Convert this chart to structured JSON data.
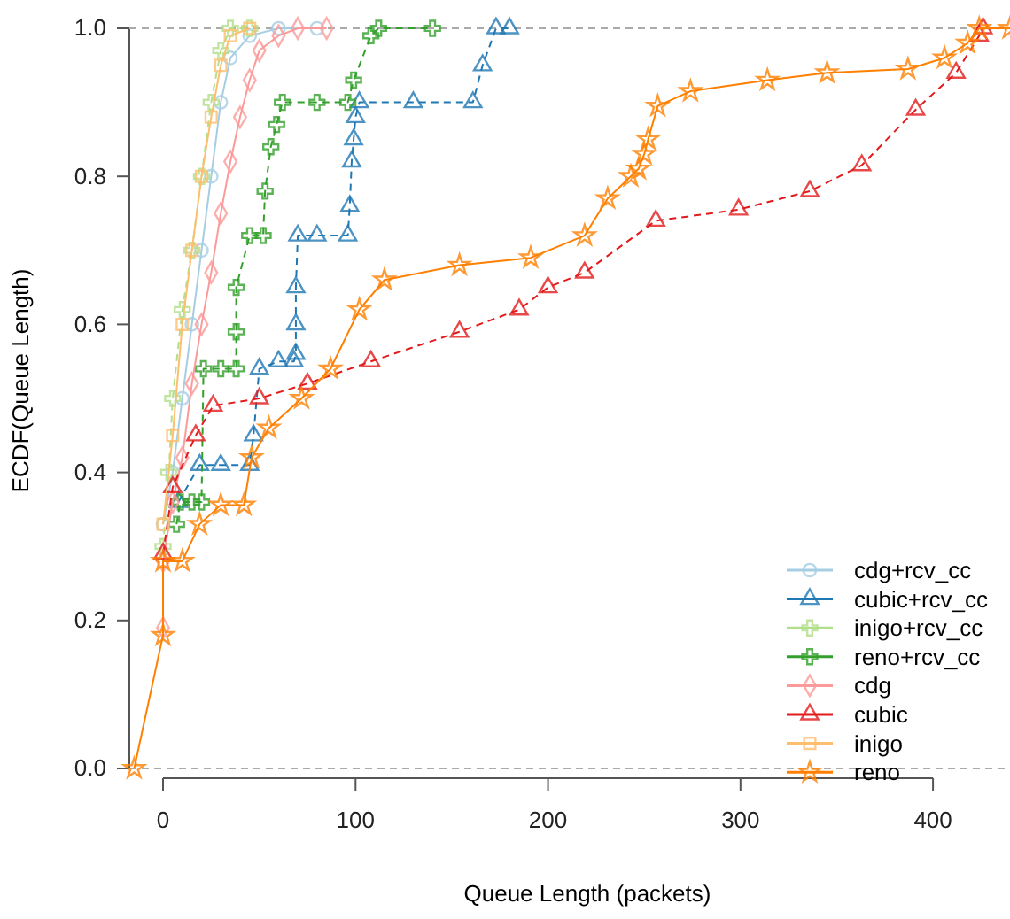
{
  "chart_data": {
    "type": "line",
    "xlabel": "Queue Length (packets)",
    "ylabel": "ECDF(Queue Length)",
    "xlim": [
      -17.5,
      440
    ],
    "ylim": [
      0,
      1
    ],
    "xticks": [
      0,
      100,
      200,
      300,
      400
    ],
    "yticks": [
      {
        "value": 0,
        "label": "0.0"
      },
      {
        "value": 0.2,
        "label": "0.2"
      },
      {
        "value": 0.4,
        "label": "0.4"
      },
      {
        "value": 0.6,
        "label": "0.6"
      },
      {
        "value": 0.8,
        "label": "0.8"
      },
      {
        "value": 1,
        "label": "1.0"
      }
    ],
    "grid": false,
    "legend": "bottom right",
    "ref_lines": [
      {
        "axis": "y",
        "value": 0,
        "color": "#aaaaaa",
        "line_style": "dashed"
      },
      {
        "axis": "y",
        "value": 1,
        "color": "#aaaaaa",
        "line_style": "dashed"
      }
    ],
    "series": [
      {
        "name": "cdg+rcv_cc",
        "color": "#a6cee3",
        "marker": "circle",
        "line_style": "solid",
        "x": [
          0,
          5,
          10,
          15,
          20,
          25,
          30,
          35,
          45,
          60,
          80
        ],
        "values": [
          0.33,
          0.4,
          0.5,
          0.6,
          0.7,
          0.8,
          0.9,
          0.96,
          0.99,
          1,
          1
        ]
      },
      {
        "name": "cubic+rcv_cc",
        "color": "#1f78b4",
        "marker": "triangle",
        "line_style": "dashed",
        "x": [
          8,
          19,
          30,
          45,
          47,
          50,
          60,
          68,
          69,
          69,
          69,
          70,
          80,
          96,
          97,
          98,
          99,
          100,
          102,
          130,
          161,
          166,
          173,
          180
        ],
        "values": [
          0.36,
          0.41,
          0.41,
          0.41,
          0.45,
          0.54,
          0.55,
          0.55,
          0.56,
          0.6,
          0.65,
          0.72,
          0.72,
          0.72,
          0.76,
          0.82,
          0.85,
          0.88,
          0.9,
          0.9,
          0.9,
          0.95,
          1,
          1
        ]
      },
      {
        "name": "inigo+rcv_cc",
        "color": "#b2df8a",
        "marker": "cross",
        "line_style": "dashed",
        "x": [
          0,
          3,
          5,
          10,
          15,
          20,
          25,
          30,
          35,
          45
        ],
        "values": [
          0.3,
          0.4,
          0.5,
          0.62,
          0.7,
          0.8,
          0.9,
          0.97,
          1,
          1
        ]
      },
      {
        "name": "reno+rcv_cc",
        "color": "#33a02c",
        "marker": "cross",
        "line_style": "dashed",
        "x": [
          7,
          9,
          15,
          20,
          21,
          30,
          38,
          38,
          38,
          45,
          52,
          53,
          56,
          59,
          62,
          80,
          96,
          99,
          108,
          112,
          140
        ],
        "values": [
          0.33,
          0.36,
          0.36,
          0.36,
          0.54,
          0.54,
          0.54,
          0.59,
          0.65,
          0.72,
          0.72,
          0.78,
          0.84,
          0.87,
          0.9,
          0.9,
          0.9,
          0.93,
          0.99,
          1,
          1
        ]
      },
      {
        "name": "cdg",
        "color": "#fb9a99",
        "marker": "diamond",
        "line_style": "solid",
        "x": [
          0,
          0,
          5,
          10,
          15,
          20,
          25,
          30,
          35,
          40,
          45,
          50,
          60,
          70,
          85
        ],
        "values": [
          0.19,
          0.28,
          0.36,
          0.42,
          0.52,
          0.6,
          0.67,
          0.75,
          0.82,
          0.88,
          0.93,
          0.97,
          0.99,
          1,
          1
        ]
      },
      {
        "name": "cubic",
        "color": "#e31a1c",
        "marker": "triangle",
        "line_style": "dashed",
        "x": [
          0,
          5,
          17,
          26,
          50,
          75,
          108,
          154,
          185,
          200,
          219,
          256,
          299,
          336,
          363,
          391,
          412,
          424,
          426
        ],
        "values": [
          0.29,
          0.38,
          0.45,
          0.49,
          0.5,
          0.52,
          0.55,
          0.59,
          0.62,
          0.65,
          0.67,
          0.74,
          0.755,
          0.78,
          0.815,
          0.89,
          0.94,
          0.99,
          1
        ]
      },
      {
        "name": "inigo",
        "color": "#fdbf6f",
        "marker": "square",
        "line_style": "solid",
        "x": [
          0,
          5,
          10,
          15,
          20,
          25,
          30,
          35,
          45
        ],
        "values": [
          0.33,
          0.45,
          0.6,
          0.7,
          0.8,
          0.88,
          0.95,
          0.99,
          1
        ]
      },
      {
        "name": "reno",
        "color": "#ff7f00",
        "marker": "star",
        "line_style": "solid",
        "x": [
          -15,
          0,
          0,
          10,
          19,
          30,
          42,
          46,
          55,
          72,
          87,
          102,
          115,
          154,
          191,
          219,
          231,
          243,
          247,
          250,
          252,
          257,
          274,
          314,
          345,
          387,
          406,
          418,
          424,
          440
        ],
        "values": [
          0,
          0.18,
          0.28,
          0.28,
          0.33,
          0.356,
          0.356,
          0.42,
          0.46,
          0.5,
          0.54,
          0.62,
          0.66,
          0.68,
          0.69,
          0.72,
          0.77,
          0.8,
          0.81,
          0.83,
          0.85,
          0.895,
          0.915,
          0.93,
          0.94,
          0.945,
          0.96,
          0.98,
          1,
          1
        ]
      }
    ]
  }
}
